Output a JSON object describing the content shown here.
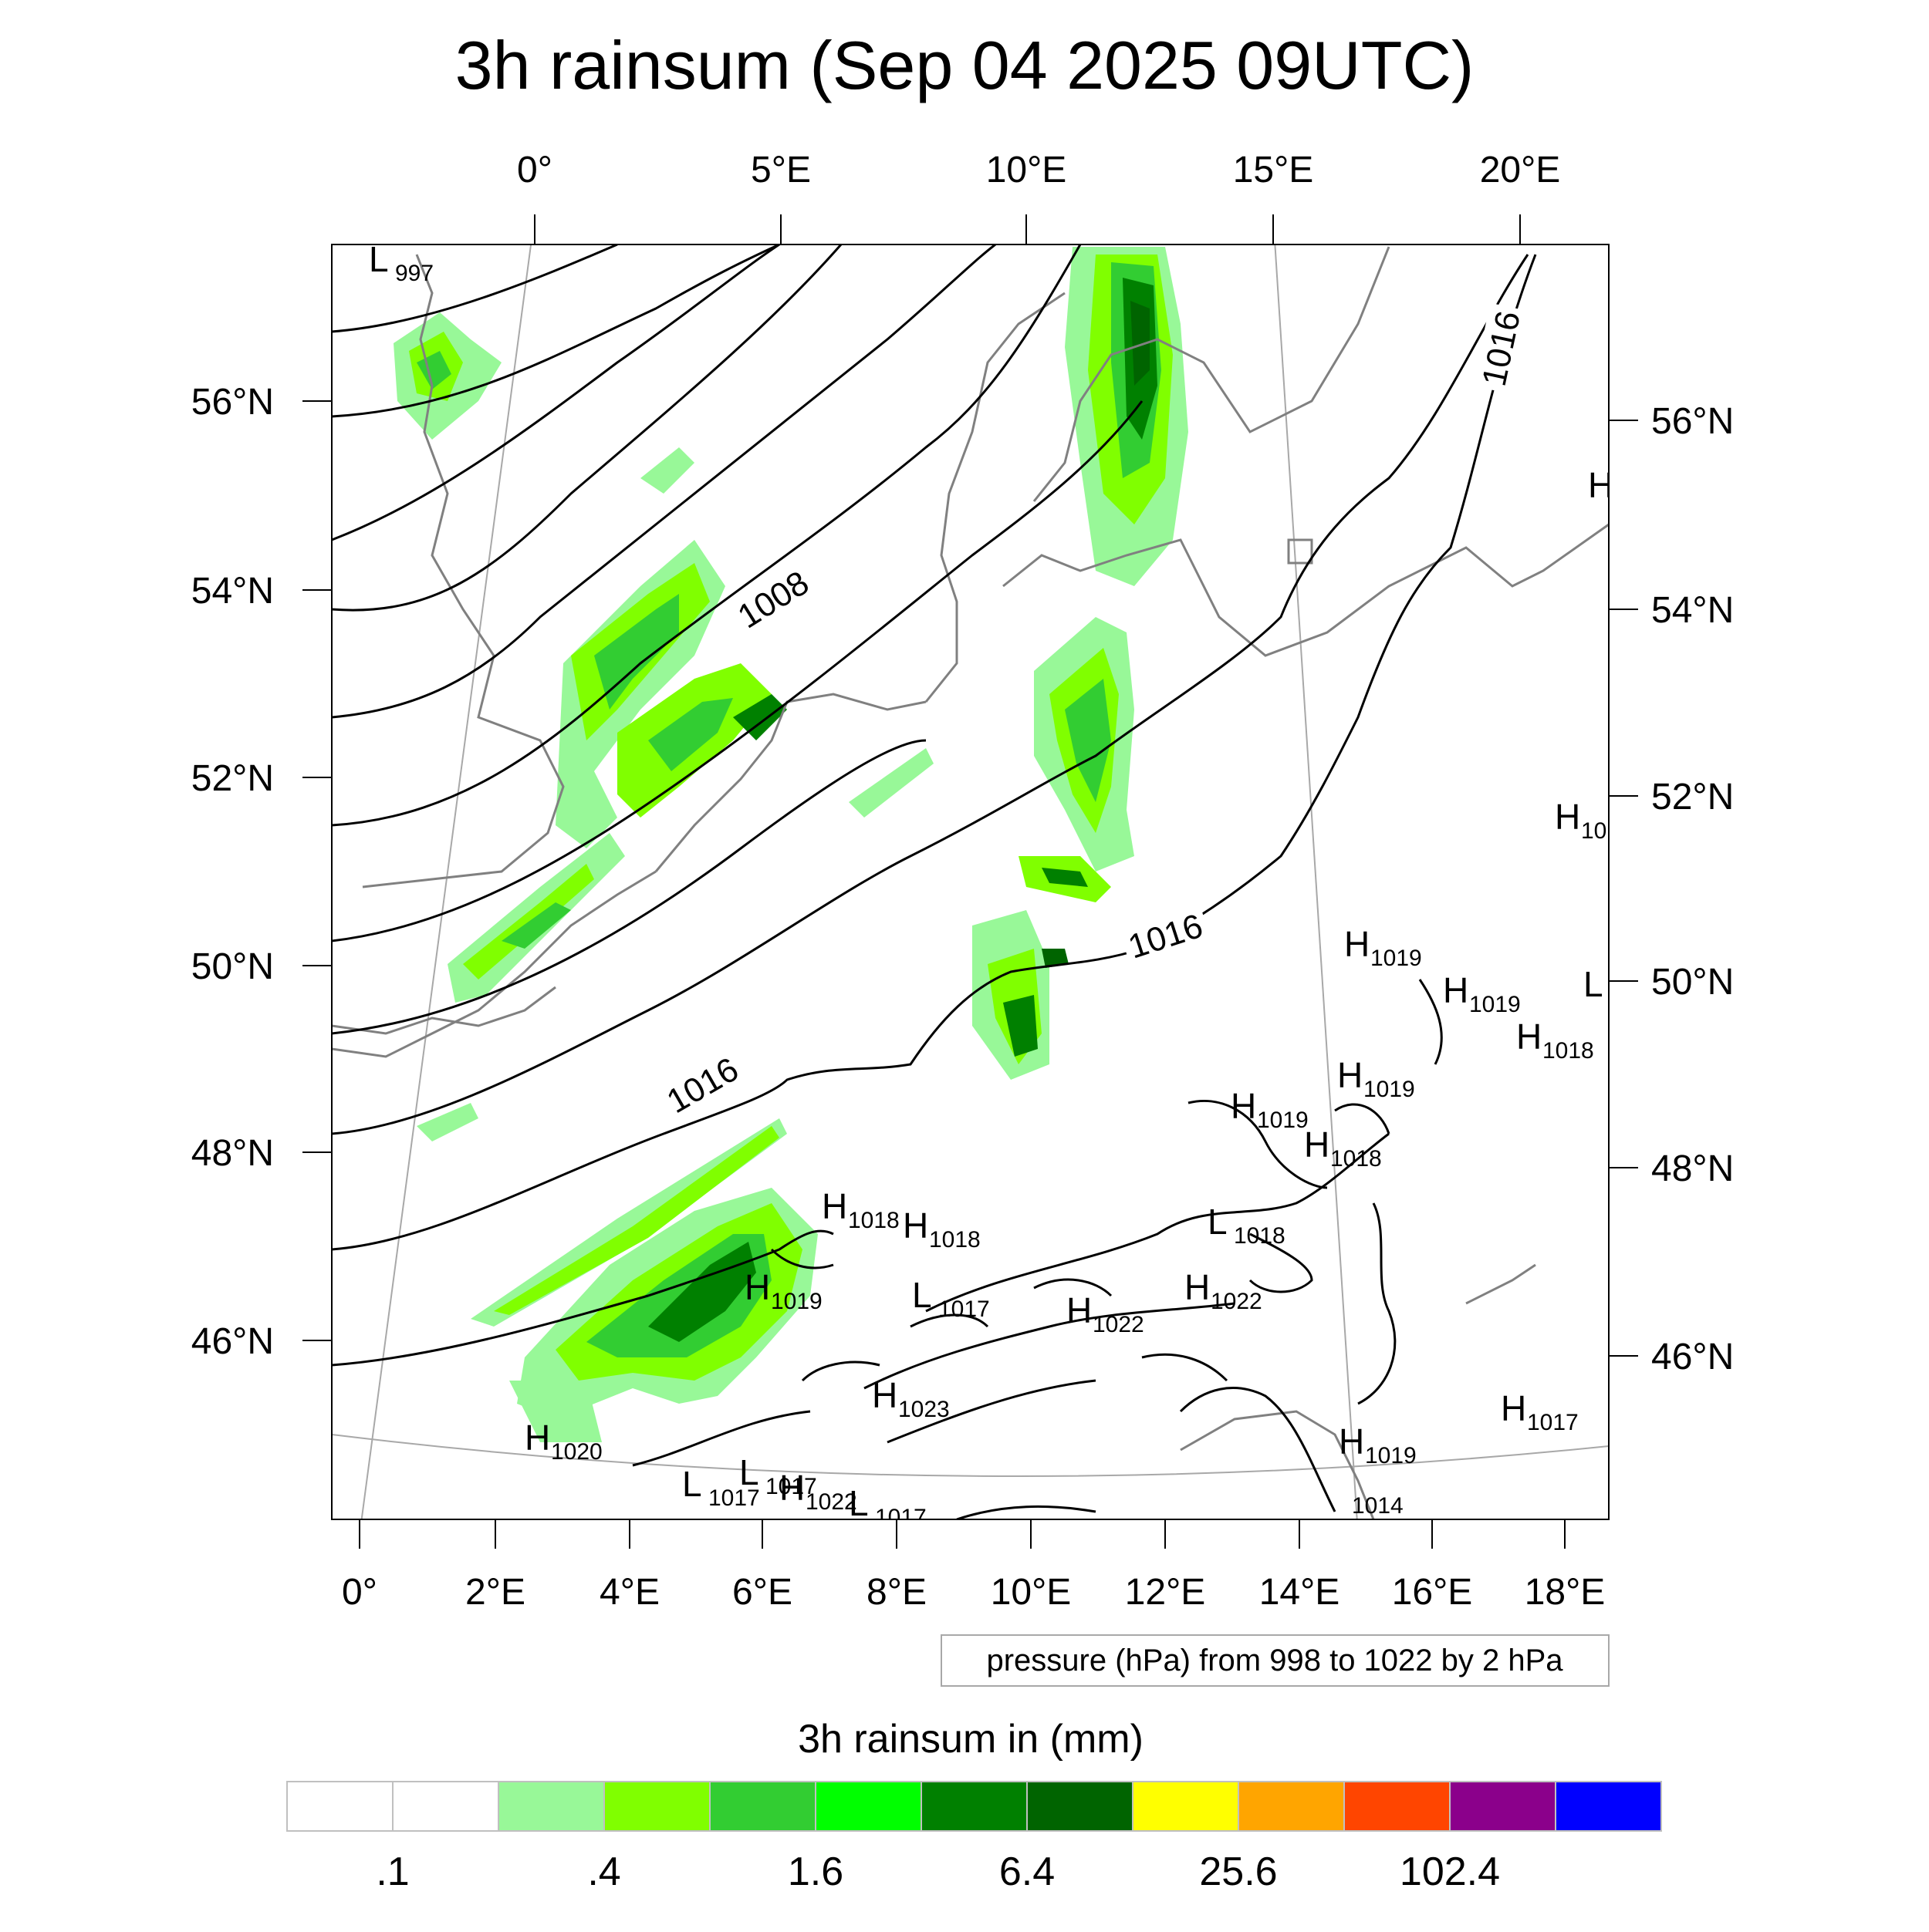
{
  "title": "3h rainsum (Sep 04 2025 09UTC)",
  "map": {
    "top_lon_labels": [
      "0°",
      "5°E",
      "10°E",
      "15°E",
      "20°E"
    ],
    "bottom_lon_labels": [
      "0°",
      "2°E",
      "4°E",
      "6°E",
      "8°E",
      "10°E",
      "12°E",
      "14°E",
      "16°E",
      "18°E"
    ],
    "left_lat_labels": [
      "56°N",
      "54°N",
      "52°N",
      "50°N",
      "48°N",
      "46°N"
    ],
    "right_lat_labels": [
      "56°N",
      "54°N",
      "52°N",
      "50°N",
      "48°N",
      "46°N"
    ],
    "isobar_labels": [
      "1008",
      "1016",
      "1016",
      "1016"
    ],
    "pressure_centers": [
      {
        "type": "L",
        "value": "997"
      },
      {
        "type": "H",
        "value": "1018"
      },
      {
        "type": "H",
        "value": "1018"
      },
      {
        "type": "H",
        "value": "1019"
      },
      {
        "type": "L",
        "value": "1017"
      },
      {
        "type": "H",
        "value": "1022"
      },
      {
        "type": "H",
        "value": "1023"
      },
      {
        "type": "H",
        "value": "1020"
      },
      {
        "type": "L",
        "value": "1017"
      },
      {
        "type": "L",
        "value": "1017"
      },
      {
        "type": "H",
        "value": "1022"
      },
      {
        "type": "L",
        "value": "1017"
      },
      {
        "type": "L",
        "value": "1018"
      },
      {
        "type": "H",
        "value": "1022"
      },
      {
        "type": "H",
        "value": "1019"
      },
      {
        "type": "H",
        "value": "1019"
      },
      {
        "type": "H",
        "value": "1018"
      },
      {
        "type": "H",
        "value": "1019"
      },
      {
        "type": "H",
        "value": "1019"
      },
      {
        "type": "H",
        "value": "1018"
      },
      {
        "type": "L",
        "value": ""
      },
      {
        "type": "H",
        "value": "10"
      },
      {
        "type": "H",
        "value": ""
      },
      {
        "type": "H",
        "value": "1017"
      },
      {
        "type": "H",
        "value": "1019"
      },
      {
        "type": "",
        "value": "1014"
      }
    ],
    "colors": {
      "coastline": "#808080",
      "isobar": "#000000",
      "graticule": "#a0a0a0"
    }
  },
  "pressure_note": "pressure (hPa) from 998 to 1022 by 2 hPa",
  "colorbar": {
    "title": "3h rainsum in (mm)",
    "colors": [
      "#ffffff",
      "#ffffff",
      "#98f898",
      "#80ff00",
      "#32cd32",
      "#00ff00",
      "#008000",
      "#006400",
      "#ffff00",
      "#ffa500",
      "#ff4500",
      "#8b008b",
      "#0000ff"
    ],
    "labels": [
      ".1",
      ".4",
      "1.6",
      "6.4",
      "25.6",
      "102.4"
    ]
  }
}
